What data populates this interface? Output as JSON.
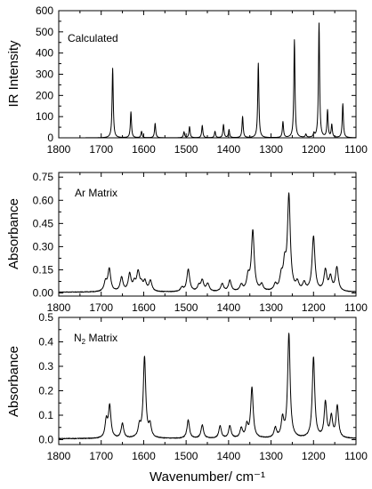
{
  "chart_data": [
    {
      "type": "line",
      "annotation": "Calculated",
      "annotation_subscript": "",
      "annotation_suffix": "",
      "ylabel": "IR Intensity",
      "xlabel": "",
      "xlim": [
        1800,
        1100
      ],
      "ylim": [
        0,
        600
      ],
      "x_ticks": [
        1800,
        1700,
        1600,
        1500,
        1400,
        1300,
        1200,
        1100
      ],
      "y_ticks": [
        0,
        100,
        200,
        300,
        400,
        500,
        600
      ],
      "tick_decimals": 0,
      "baseline": 0,
      "noise": 0,
      "grid": false,
      "peaks": [
        {
          "x": 1673,
          "y": 328
        },
        {
          "x": 1630,
          "y": 122
        },
        {
          "x": 1605,
          "y": 30
        },
        {
          "x": 1573,
          "y": 68
        },
        {
          "x": 1505,
          "y": 28
        },
        {
          "x": 1492,
          "y": 52
        },
        {
          "x": 1462,
          "y": 58
        },
        {
          "x": 1432,
          "y": 30
        },
        {
          "x": 1412,
          "y": 62
        },
        {
          "x": 1399,
          "y": 38
        },
        {
          "x": 1367,
          "y": 100
        },
        {
          "x": 1330,
          "y": 352
        },
        {
          "x": 1272,
          "y": 75
        },
        {
          "x": 1245,
          "y": 462
        },
        {
          "x": 1218,
          "y": 15
        },
        {
          "x": 1199,
          "y": 18
        },
        {
          "x": 1187,
          "y": 540
        },
        {
          "x": 1167,
          "y": 128
        },
        {
          "x": 1157,
          "y": 60
        },
        {
          "x": 1131,
          "y": 160
        }
      ]
    },
    {
      "type": "line",
      "annotation": "Ar Matrix",
      "annotation_subscript": "",
      "annotation_suffix": "",
      "ylabel": "Absorbance",
      "xlabel": "",
      "xlim": [
        1800,
        1100
      ],
      "ylim": [
        -0.02,
        0.78
      ],
      "x_ticks": [
        1800,
        1700,
        1600,
        1500,
        1400,
        1300,
        1200,
        1100
      ],
      "y_ticks": [
        0,
        0.15,
        0.3,
        0.45,
        0.6,
        0.75
      ],
      "tick_decimals": 2,
      "baseline": 0.005,
      "noise": 0.004,
      "grid": false,
      "peaks": [
        {
          "x": 1690,
          "y": 0.06
        },
        {
          "x": 1681,
          "y": 0.145
        },
        {
          "x": 1652,
          "y": 0.09
        },
        {
          "x": 1633,
          "y": 0.11
        },
        {
          "x": 1622,
          "y": 0.05
        },
        {
          "x": 1613,
          "y": 0.12
        },
        {
          "x": 1605,
          "y": 0.04
        },
        {
          "x": 1597,
          "y": 0.06
        },
        {
          "x": 1584,
          "y": 0.07
        },
        {
          "x": 1510,
          "y": 0.025
        },
        {
          "x": 1495,
          "y": 0.145
        },
        {
          "x": 1470,
          "y": 0.035
        },
        {
          "x": 1462,
          "y": 0.07
        },
        {
          "x": 1449,
          "y": 0.05
        },
        {
          "x": 1415,
          "y": 0.05
        },
        {
          "x": 1397,
          "y": 0.07
        },
        {
          "x": 1370,
          "y": 0.04
        },
        {
          "x": 1354,
          "y": 0.09
        },
        {
          "x": 1343,
          "y": 0.39
        },
        {
          "x": 1322,
          "y": 0.04
        },
        {
          "x": 1290,
          "y": 0.04
        },
        {
          "x": 1276,
          "y": 0.085
        },
        {
          "x": 1268,
          "y": 0.15
        },
        {
          "x": 1258,
          "y": 0.61
        },
        {
          "x": 1238,
          "y": 0.05
        },
        {
          "x": 1222,
          "y": 0.05
        },
        {
          "x": 1200,
          "y": 0.355
        },
        {
          "x": 1172,
          "y": 0.135
        },
        {
          "x": 1160,
          "y": 0.09
        },
        {
          "x": 1145,
          "y": 0.155
        }
      ]
    },
    {
      "type": "line",
      "annotation": "N",
      "annotation_subscript": "2",
      "annotation_suffix": " Matrix",
      "ylabel": "Absorbance",
      "xlabel": "Wavenumber/ cm⁻¹",
      "xlim": [
        1800,
        1100
      ],
      "ylim": [
        -0.02,
        0.5
      ],
      "x_ticks": [
        1800,
        1700,
        1600,
        1500,
        1400,
        1300,
        1200,
        1100
      ],
      "y_ticks": [
        0,
        0.1,
        0.2,
        0.3,
        0.4,
        0.5
      ],
      "tick_decimals": 1,
      "baseline": 0.004,
      "noise": 0.003,
      "grid": false,
      "peaks": [
        {
          "x": 1688,
          "y": 0.07
        },
        {
          "x": 1680,
          "y": 0.13
        },
        {
          "x": 1650,
          "y": 0.06
        },
        {
          "x": 1610,
          "y": 0.045
        },
        {
          "x": 1598,
          "y": 0.33
        },
        {
          "x": 1585,
          "y": 0.05
        },
        {
          "x": 1495,
          "y": 0.075
        },
        {
          "x": 1462,
          "y": 0.055
        },
        {
          "x": 1420,
          "y": 0.05
        },
        {
          "x": 1397,
          "y": 0.05
        },
        {
          "x": 1370,
          "y": 0.04
        },
        {
          "x": 1357,
          "y": 0.05
        },
        {
          "x": 1345,
          "y": 0.205
        },
        {
          "x": 1290,
          "y": 0.04
        },
        {
          "x": 1273,
          "y": 0.075
        },
        {
          "x": 1258,
          "y": 0.425
        },
        {
          "x": 1200,
          "y": 0.33
        },
        {
          "x": 1172,
          "y": 0.145
        },
        {
          "x": 1158,
          "y": 0.085
        },
        {
          "x": 1144,
          "y": 0.13
        }
      ]
    }
  ]
}
